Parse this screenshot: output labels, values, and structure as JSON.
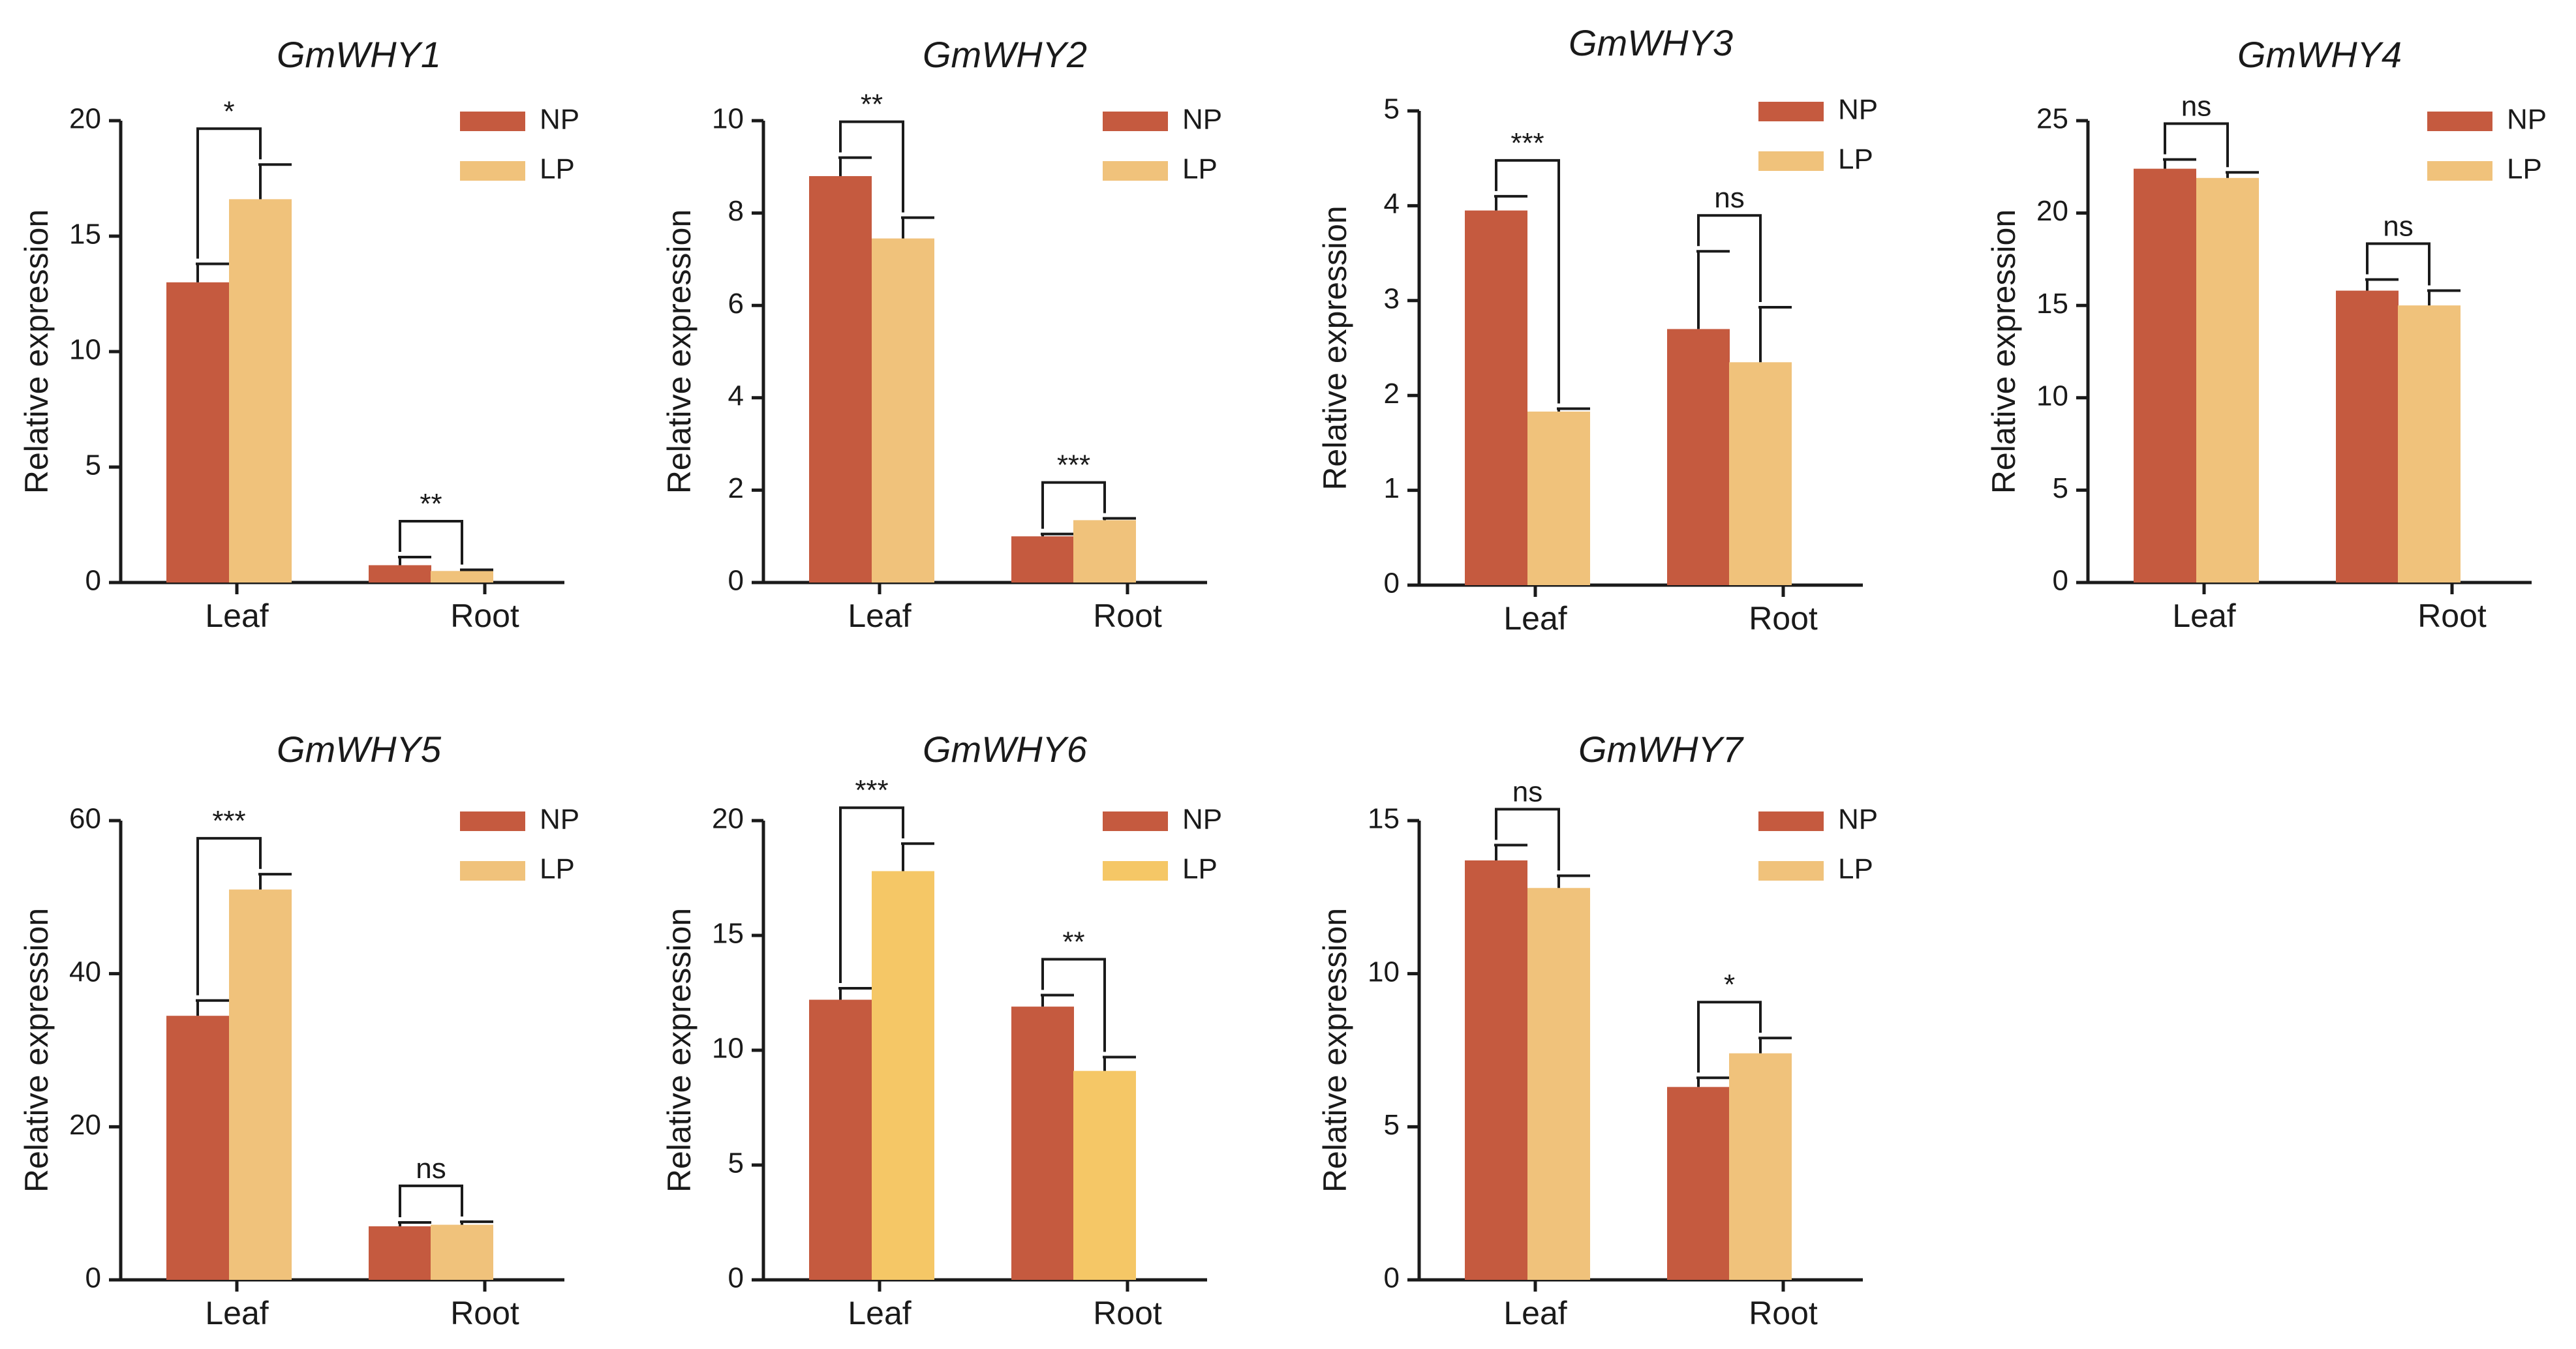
{
  "figure": {
    "legend": [
      {
        "name": "NP",
        "color": "#c55a3f"
      },
      {
        "name": "LP",
        "color": "#f0c27b"
      }
    ],
    "ylabel": "Relative expression",
    "categories": [
      "Leaf",
      "Root"
    ]
  },
  "chart_data": [
    {
      "type": "bar",
      "title": "GmWHY1",
      "ylabel": "Relative expression",
      "categories": [
        "Leaf",
        "Root"
      ],
      "ylim": [
        0,
        20
      ],
      "yticks": [
        0,
        5,
        10,
        15,
        20
      ],
      "series": [
        {
          "name": "NP",
          "color": "#c55a3f",
          "values": [
            13.0,
            0.75
          ],
          "errors": [
            0.8,
            0.35
          ]
        },
        {
          "name": "LP",
          "color": "#f0c27b",
          "values": [
            16.6,
            0.5
          ],
          "errors": [
            1.5,
            0.05
          ]
        }
      ],
      "significance": [
        "*",
        "**"
      ]
    },
    {
      "type": "bar",
      "title": "GmWHY2",
      "ylabel": "Relative expression",
      "categories": [
        "Leaf",
        "Root"
      ],
      "ylim": [
        0,
        10
      ],
      "yticks": [
        0,
        2,
        4,
        6,
        8,
        10
      ],
      "series": [
        {
          "name": "NP",
          "color": "#c55a3f",
          "values": [
            8.8,
            1.0
          ],
          "errors": [
            0.4,
            0.05
          ]
        },
        {
          "name": "LP",
          "color": "#f0c27b",
          "values": [
            7.45,
            1.35
          ],
          "errors": [
            0.45,
            0.04
          ]
        }
      ],
      "significance": [
        "**",
        "***"
      ]
    },
    {
      "type": "bar",
      "title": "GmWHY3",
      "ylabel": "Relative expression",
      "categories": [
        "Leaf",
        "Root"
      ],
      "ylim": [
        0,
        5
      ],
      "yticks": [
        0,
        1,
        2,
        3,
        4,
        5
      ],
      "series": [
        {
          "name": "NP",
          "color": "#c55a3f",
          "values": [
            3.95,
            2.7
          ],
          "errors": [
            0.15,
            0.82
          ]
        },
        {
          "name": "LP",
          "color": "#f0c27b",
          "values": [
            1.83,
            2.35
          ],
          "errors": [
            0.03,
            0.58
          ]
        }
      ],
      "significance": [
        "***",
        "ns"
      ]
    },
    {
      "type": "bar",
      "title": "GmWHY4",
      "ylabel": "Relative expression",
      "categories": [
        "Leaf",
        "Root"
      ],
      "ylim": [
        0,
        25
      ],
      "yticks": [
        0,
        5,
        10,
        15,
        20,
        25
      ],
      "series": [
        {
          "name": "NP",
          "color": "#c55a3f",
          "values": [
            22.4,
            15.8
          ],
          "errors": [
            0.5,
            0.6
          ]
        },
        {
          "name": "LP",
          "color": "#f0c27b",
          "values": [
            21.9,
            15.0
          ],
          "errors": [
            0.3,
            0.8
          ]
        }
      ],
      "significance": [
        "ns",
        "ns"
      ]
    },
    {
      "type": "bar",
      "title": "GmWHY5",
      "ylabel": "Relative expression",
      "categories": [
        "Leaf",
        "Root"
      ],
      "ylim": [
        0,
        60
      ],
      "yticks": [
        0,
        20,
        40,
        60
      ],
      "series": [
        {
          "name": "NP",
          "color": "#c55a3f",
          "values": [
            34.5,
            7.0
          ],
          "errors": [
            2.0,
            0.5
          ]
        },
        {
          "name": "LP",
          "color": "#f0c27b",
          "values": [
            51.0,
            7.2
          ],
          "errors": [
            2.0,
            0.4
          ]
        }
      ],
      "significance": [
        "***",
        "ns"
      ]
    },
    {
      "type": "bar",
      "title": "GmWHY6",
      "ylabel": "Relative expression",
      "categories": [
        "Leaf",
        "Root"
      ],
      "ylim": [
        0,
        20
      ],
      "yticks": [
        0,
        5,
        10,
        15,
        20
      ],
      "series": [
        {
          "name": "NP",
          "color": "#c55a3f",
          "values": [
            12.2,
            11.9
          ],
          "errors": [
            0.5,
            0.5
          ]
        },
        {
          "name": "LP",
          "color": "#f5c766",
          "values": [
            17.8,
            9.1
          ],
          "errors": [
            1.2,
            0.6
          ]
        }
      ],
      "significance": [
        "***",
        "**"
      ]
    },
    {
      "type": "bar",
      "title": "GmWHY7",
      "ylabel": "Relative expression",
      "categories": [
        "Leaf",
        "Root"
      ],
      "ylim": [
        0,
        15
      ],
      "yticks": [
        0,
        5,
        10,
        15
      ],
      "series": [
        {
          "name": "NP",
          "color": "#c55a3f",
          "values": [
            13.7,
            6.3
          ],
          "errors": [
            0.5,
            0.3
          ]
        },
        {
          "name": "LP",
          "color": "#f0c27b",
          "values": [
            12.8,
            7.4
          ],
          "errors": [
            0.4,
            0.5
          ]
        }
      ],
      "significance": [
        "ns",
        "*"
      ]
    }
  ]
}
